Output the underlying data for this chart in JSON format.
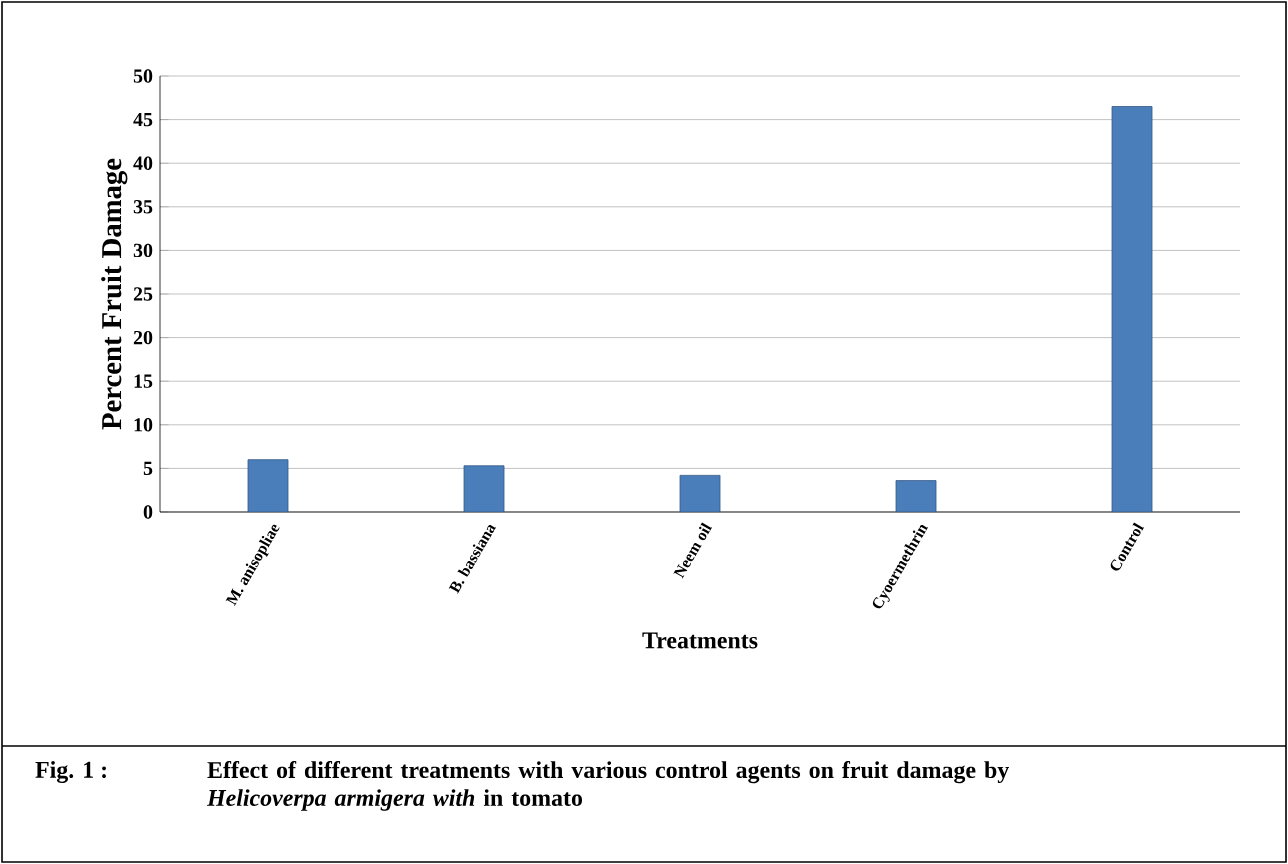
{
  "chart_data": {
    "type": "bar",
    "xlabel": "Treatments",
    "ylabel": "Percent Fruit Damage",
    "categories": [
      "M. anisopliae",
      "B. bassiana",
      "Neem oil",
      "Cyoermethrin",
      "Control"
    ],
    "values": [
      6.0,
      5.3,
      4.2,
      3.6,
      46.5
    ],
    "color": "#4a7ebb",
    "ylim": [
      0,
      50
    ],
    "yticks": [
      0,
      5,
      10,
      15,
      20,
      25,
      30,
      35,
      40,
      45,
      50
    ],
    "grid": "y",
    "annotations": [
      "Fig. 1 :",
      "Effect of different treatments with various control agents on fruit damage by *Helicoverpa armigera with* in tomato"
    ]
  }
}
